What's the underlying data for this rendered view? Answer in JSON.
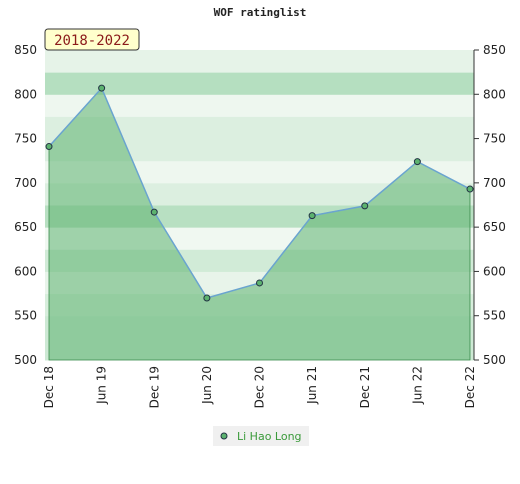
{
  "chart_data": {
    "type": "line",
    "title": "WOF ratinglist",
    "annotation": "2018-2022",
    "categories": [
      "Dec 18",
      "Jun 19",
      "Dec 19",
      "Jun 20",
      "Dec 20",
      "Jun 21",
      "Dec 21",
      "Jun 22",
      "Dec 22"
    ],
    "series": [
      {
        "name": "Li Hao Long",
        "color": "#5cb26f",
        "values": [
          741,
          807,
          667,
          570,
          587,
          663,
          674,
          724,
          693
        ]
      }
    ],
    "ylim": [
      500,
      850
    ],
    "yticks": [
      500,
      550,
      600,
      650,
      700,
      750,
      800,
      850
    ]
  }
}
